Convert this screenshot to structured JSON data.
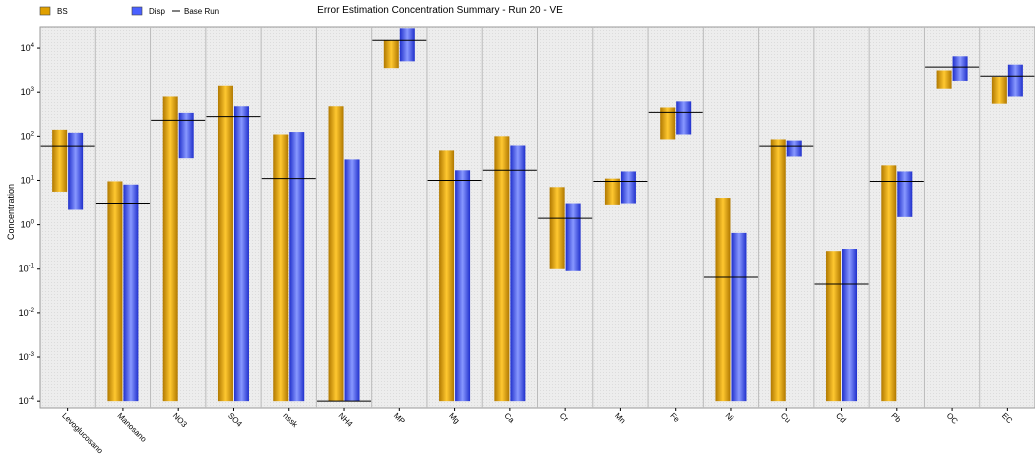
{
  "chart_data": {
    "type": "bar",
    "title": "Error Estimation Concentration Summary - Run 20 - VE",
    "ylabel": "Concentration",
    "xlabel": "",
    "yscale": "log",
    "ylim": [
      7e-05,
      30000
    ],
    "y_ticks": [
      {
        "value": 0.0001,
        "mantissa": "10",
        "exp": "-4"
      },
      {
        "value": 0.001,
        "mantissa": "10",
        "exp": "-3"
      },
      {
        "value": 0.01,
        "mantissa": "10",
        "exp": "-2"
      },
      {
        "value": 0.1,
        "mantissa": "10",
        "exp": "-1"
      },
      {
        "value": 1,
        "mantissa": "10",
        "exp": "0"
      },
      {
        "value": 10,
        "mantissa": "10",
        "exp": "1"
      },
      {
        "value": 100,
        "mantissa": "10",
        "exp": "2"
      },
      {
        "value": 1000,
        "mantissa": "10",
        "exp": "3"
      },
      {
        "value": 10000,
        "mantissa": "10",
        "exp": "4"
      }
    ],
    "grid": true,
    "legend_position": "top-left",
    "legend": [
      {
        "name": "BS",
        "kind": "box",
        "color": "#E0A000"
      },
      {
        "name": "Disp",
        "kind": "box",
        "color": "#4A60FF"
      },
      {
        "name": "Base Run",
        "kind": "line",
        "color": "#000000"
      }
    ],
    "categories": [
      "Levoglucosano",
      "Manosano",
      "NO3",
      "SO4",
      "nssk",
      "NH4",
      "MP",
      "Mg",
      "Ca",
      "Cr",
      "Mn",
      "Fe",
      "Ni",
      "Cu",
      "Cd",
      "Pb",
      "OC",
      "EC"
    ],
    "bs_range": [
      [
        5.5,
        140
      ],
      [
        0.0001,
        9.5
      ],
      [
        0.0001,
        800
      ],
      [
        0.0001,
        1400
      ],
      [
        0.0001,
        110
      ],
      [
        0.0001,
        480
      ],
      [
        3500,
        15000
      ],
      [
        0.0001,
        48
      ],
      [
        0.0001,
        100
      ],
      [
        0.1,
        7
      ],
      [
        2.8,
        11
      ],
      [
        85,
        450
      ],
      [
        0.0001,
        4
      ],
      [
        0.0001,
        85
      ],
      [
        0.0001,
        0.25
      ],
      [
        0.0001,
        22
      ],
      [
        1200,
        3100
      ],
      [
        550,
        2200
      ]
    ],
    "disp_range": [
      [
        2.2,
        120
      ],
      [
        0.0001,
        8
      ],
      [
        32,
        340
      ],
      [
        0.0001,
        480
      ],
      [
        0.0001,
        125
      ],
      [
        0.0001,
        30
      ],
      [
        5000,
        28000
      ],
      [
        0.0001,
        17
      ],
      [
        0.0001,
        62
      ],
      [
        0.09,
        3
      ],
      [
        3,
        16
      ],
      [
        110,
        620
      ],
      [
        0.0001,
        0.65
      ],
      [
        35,
        80
      ],
      [
        0.0001,
        0.28
      ],
      [
        1.5,
        16
      ],
      [
        1800,
        6500
      ],
      [
        800,
        4200
      ]
    ],
    "base_run": [
      60,
      3,
      230,
      280,
      11,
      0.0001,
      15000,
      10,
      17,
      1.4,
      9.5,
      350,
      0.065,
      60,
      0.045,
      9.5,
      3700,
      2300
    ],
    "colors": {
      "bs_dark": "#B07800",
      "bs_light": "#FFC830",
      "disp_dark": "#2030CC",
      "disp_light": "#8898FF",
      "plot_bg": "#EDEDED",
      "stripe": "#DCDCDC",
      "separator": "#BBBBBB"
    }
  }
}
